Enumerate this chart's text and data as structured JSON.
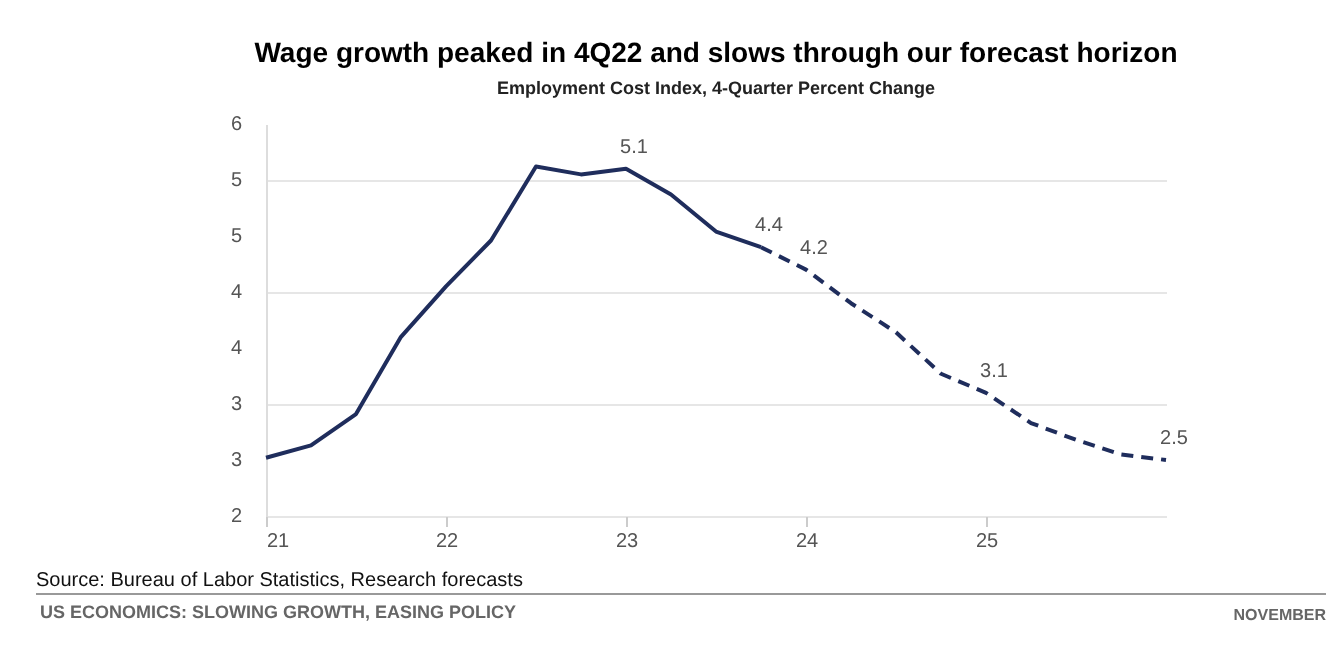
{
  "chart_data": {
    "type": "line",
    "title": "Wage growth peaked in 4Q22 and slows through our forecast horizon",
    "subtitle": "Employment Cost Index, 4-Quarter Percent Change",
    "series": [
      {
        "color": "#1f2d5c",
        "line_style": "solid",
        "x": [
          21.0,
          21.25,
          21.5,
          21.75,
          22.0,
          22.25,
          22.5,
          22.75,
          23.0,
          23.25,
          23.5,
          23.75
        ],
        "values": [
          2.52,
          2.63,
          2.91,
          3.6,
          4.05,
          4.46,
          5.12,
          5.05,
          5.1,
          4.87,
          4.54,
          4.4
        ],
        "value_labels": [
          null,
          null,
          null,
          null,
          null,
          null,
          null,
          null,
          "5.1",
          null,
          null,
          "4.4"
        ]
      },
      {
        "color": "#1f2d5c",
        "line_style": "dashed",
        "x": [
          23.75,
          24.0,
          24.25,
          24.5,
          24.75,
          25.0,
          25.25,
          25.5,
          25.75,
          26.0
        ],
        "values": [
          4.4,
          4.2,
          3.9,
          3.64,
          3.27,
          3.1,
          2.83,
          2.68,
          2.55,
          2.5
        ],
        "value_labels": [
          null,
          "4.2",
          null,
          null,
          null,
          "3.1",
          null,
          null,
          null,
          "2.5"
        ]
      }
    ],
    "xlim": [
      21,
      26
    ],
    "xticks": [
      21,
      22,
      23,
      24,
      25
    ],
    "ylim": [
      2,
      5.5
    ],
    "yticks": [
      2,
      {
        "value": 2.5,
        "label": "3"
      },
      3,
      {
        "value": 3.5,
        "label": "4"
      },
      4,
      {
        "value": 4.5,
        "label": "5"
      },
      5,
      {
        "value": 5.5,
        "label": "6"
      }
    ],
    "grid": "y",
    "marker": "none",
    "annotations": [
      "Source: Bureau of Labor Statistics, Research forecasts",
      "US ECONOMICS: SLOWING GROWTH, EASING POLICY",
      "NOVEMBER"
    ]
  }
}
